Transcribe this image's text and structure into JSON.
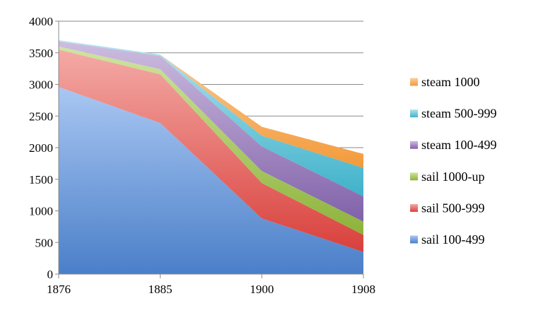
{
  "chart_data": {
    "type": "area",
    "stacked": true,
    "title": "",
    "xlabel": "",
    "ylabel": "",
    "x": [
      1876,
      1885,
      1900,
      1908
    ],
    "x_tick_labels": [
      "1876",
      "1885",
      "1900",
      "1908"
    ],
    "ylim": [
      0,
      4000
    ],
    "y_ticks": [
      0,
      500,
      1000,
      1500,
      2000,
      2500,
      3000,
      3500,
      4000
    ],
    "y_tick_labels": [
      "0",
      "500",
      "1000",
      "1500",
      "2000",
      "2500",
      "3000",
      "3500",
      "4000"
    ],
    "grid": true,
    "legend_position": "right",
    "series": [
      {
        "name": "sail 100-499",
        "color": "#4a7fc9",
        "light": "#a9c7f2",
        "values": [
          2960,
          2390,
          880,
          350
        ]
      },
      {
        "name": "sail 500-999",
        "color": "#d9403c",
        "light": "#f4aaa6",
        "values": [
          590,
          770,
          560,
          270
        ]
      },
      {
        "name": "sail 1000-up",
        "color": "#8db33a",
        "light": "#cfe4a0",
        "values": [
          50,
          80,
          190,
          210
        ]
      },
      {
        "name": "steam 100-499",
        "color": "#8161a9",
        "light": "#cdbde0",
        "values": [
          80,
          210,
          390,
          400
        ]
      },
      {
        "name": "steam 500-999",
        "color": "#3fb2ca",
        "light": "#b4e3ee",
        "values": [
          20,
          20,
          170,
          450
        ]
      },
      {
        "name": "steam 1000",
        "color": "#f49a3a",
        "light": "#f9cf9f",
        "values": [
          0,
          0,
          140,
          220
        ]
      }
    ]
  }
}
